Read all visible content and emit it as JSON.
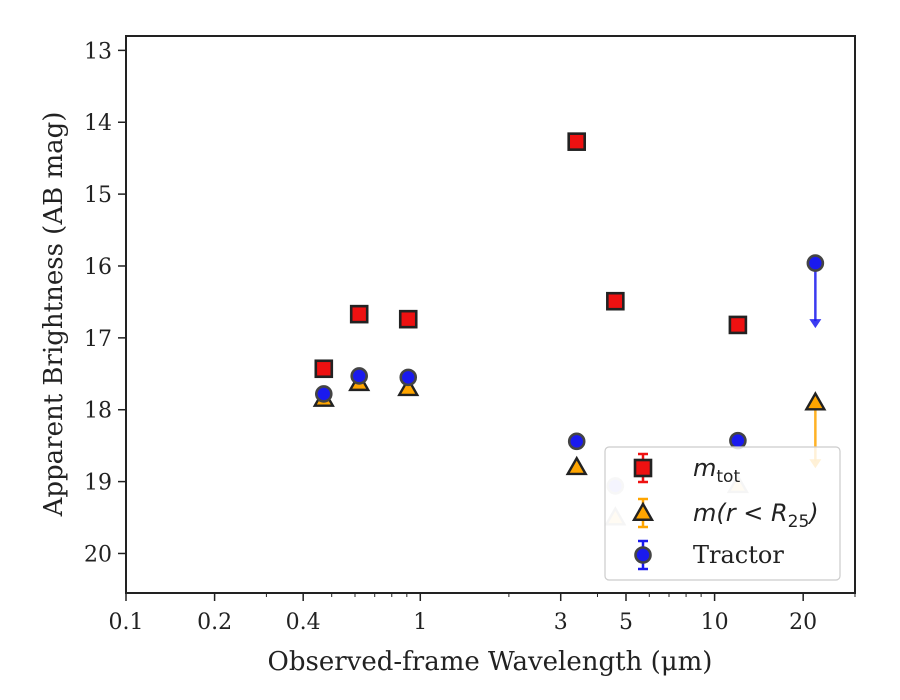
{
  "chart_data": {
    "type": "scatter",
    "xlabel": "Observed-frame Wavelength (μm)",
    "ylabel": "Apparent Brightness (AB mag)",
    "x_scale": "log",
    "xlim": [
      0.1,
      30
    ],
    "ylim": [
      20.55,
      12.8
    ],
    "y_inverted": true,
    "grid": false,
    "legend_position": "lower-right",
    "x_ticks": [
      {
        "value": 0.1,
        "label": "0.1"
      },
      {
        "value": 0.2,
        "label": "0.2"
      },
      {
        "value": 0.4,
        "label": "0.4"
      },
      {
        "value": 1,
        "label": "1"
      },
      {
        "value": 3,
        "label": "3"
      },
      {
        "value": 5,
        "label": "5"
      },
      {
        "value": 10,
        "label": "10"
      },
      {
        "value": 20,
        "label": "20"
      }
    ],
    "y_ticks": [
      {
        "value": 13,
        "label": "13"
      },
      {
        "value": 14,
        "label": "14"
      },
      {
        "value": 15,
        "label": "15"
      },
      {
        "value": 16,
        "label": "16"
      },
      {
        "value": 17,
        "label": "17"
      },
      {
        "value": 18,
        "label": "18"
      },
      {
        "value": 19,
        "label": "19"
      },
      {
        "value": 20,
        "label": "20"
      }
    ],
    "series": [
      {
        "name": "m_tot",
        "legend_main": "m",
        "legend_sub": "tot",
        "marker": "square",
        "color": "#ee1111",
        "points": [
          {
            "x": 0.47,
            "y": 17.43
          },
          {
            "x": 0.62,
            "y": 16.67
          },
          {
            "x": 0.91,
            "y": 16.74
          },
          {
            "x": 3.4,
            "y": 14.27
          },
          {
            "x": 4.6,
            "y": 16.49
          },
          {
            "x": 12.0,
            "y": 16.82
          }
        ]
      },
      {
        "name": "m(r < R25)",
        "legend_main": "m(r < R",
        "legend_sub": "25",
        "legend_end": ")",
        "marker": "triangle",
        "color": "#ffa500",
        "points": [
          {
            "x": 0.47,
            "y": 17.85
          },
          {
            "x": 0.62,
            "y": 17.63
          },
          {
            "x": 0.91,
            "y": 17.7
          },
          {
            "x": 3.4,
            "y": 18.8
          },
          {
            "x": 4.6,
            "y": 19.5,
            "faded": true
          },
          {
            "x": 12.0,
            "y": 19.05,
            "faded": true
          },
          {
            "x": 22.0,
            "y": 17.9,
            "upper_limit_to": 18.8
          }
        ]
      },
      {
        "name": "Tractor",
        "marker": "circle",
        "color": "#1a1aee",
        "points": [
          {
            "x": 0.47,
            "y": 17.78
          },
          {
            "x": 0.62,
            "y": 17.53,
            "err": 0.1
          },
          {
            "x": 0.91,
            "y": 17.55,
            "err": 0.1
          },
          {
            "x": 3.4,
            "y": 18.44,
            "err": 0.1
          },
          {
            "x": 4.6,
            "y": 19.06,
            "faded": true
          },
          {
            "x": 12.0,
            "y": 18.43
          },
          {
            "x": 22.0,
            "y": 15.96,
            "upper_limit_to": 16.85
          }
        ]
      }
    ]
  }
}
